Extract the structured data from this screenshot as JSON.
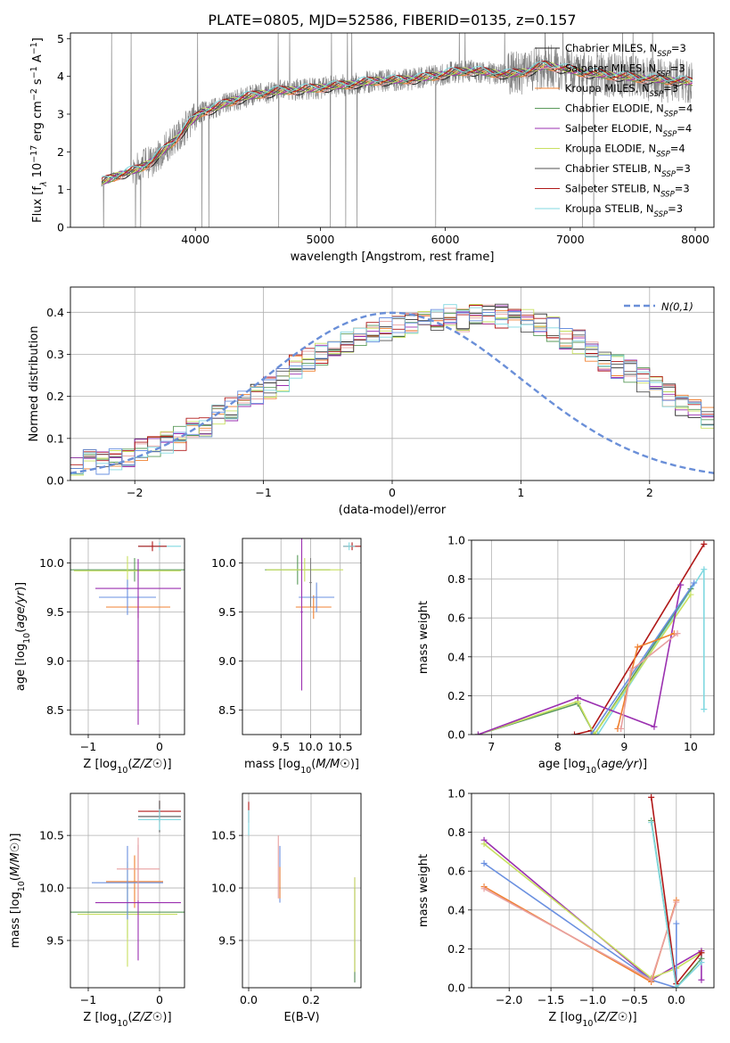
{
  "figure": {
    "title": "PLATE=0805, MJD=52586, FIBERID=0135, z=0.157"
  },
  "colors": {
    "data": "#808080",
    "models": [
      "#1f1f1f",
      "#e8a0a0",
      "#f08030",
      "#5a9a5a",
      "#9b30b0",
      "#c8e060",
      "#505050",
      "#b01818",
      "#80d8e0",
      "#6a90e0"
    ]
  },
  "chart_data": [
    {
      "id": "spectrum",
      "type": "line",
      "xlabel": "wavelength [Angstrom, rest frame]",
      "ylabel": "Flux [f_λ 10^-17 erg cm^-2 s^-1 A^-1]",
      "xlim": [
        3000,
        8150
      ],
      "ylim": [
        0,
        5.15
      ],
      "xticks": [
        4000,
        5000,
        6000,
        7000,
        8000
      ],
      "yticks": [
        0,
        1,
        2,
        3,
        4,
        5
      ],
      "grid": false,
      "legend_position": "top-right",
      "series": [
        {
          "name": "Chabrier MILES, N_SSP=3",
          "color": "#1f1f1f"
        },
        {
          "name": "Salpeter MILES, N_SSP=3",
          "color": "#e8a0a0"
        },
        {
          "name": "Kroupa MILES, N_SSP=3",
          "color": "#f08030"
        },
        {
          "name": "Chabrier ELODIE, N_SSP=4",
          "color": "#5a9a5a"
        },
        {
          "name": "Salpeter ELODIE, N_SSP=4",
          "color": "#9b30b0"
        },
        {
          "name": "Kroupa ELODIE, N_SSP=4",
          "color": "#c8e060"
        },
        {
          "name": "Chabrier STELIB, N_SSP=3",
          "color": "#505050"
        },
        {
          "name": "Salpeter STELIB, N_SSP=3",
          "color": "#b01818"
        },
        {
          "name": "Kroupa STELIB, N_SSP=3",
          "color": "#80d8e0"
        }
      ],
      "model_curve": {
        "x": [
          3250,
          3400,
          3550,
          3650,
          3750,
          3850,
          3950,
          4050,
          4150,
          4250,
          4400,
          4550,
          4700,
          4850,
          5000,
          5150,
          5300,
          5450,
          5600,
          5750,
          5900,
          6050,
          6200,
          6350,
          6500,
          6650,
          6800,
          6950,
          7100,
          7250,
          7400,
          7550,
          7700,
          7850,
          7980
        ],
        "y": [
          1.2,
          1.4,
          1.55,
          1.75,
          2.05,
          2.35,
          2.75,
          3.05,
          3.15,
          3.3,
          3.45,
          3.55,
          3.62,
          3.65,
          3.7,
          3.75,
          3.82,
          3.88,
          3.9,
          3.93,
          4.0,
          4.1,
          4.15,
          4.1,
          4.05,
          4.12,
          4.3,
          4.2,
          4.1,
          4.05,
          4.0,
          3.95,
          3.92,
          3.88,
          3.85
        ]
      }
    },
    {
      "id": "residuals",
      "type": "line",
      "xlabel": "(data-model)/error",
      "ylabel": "Normed distribution",
      "xlim": [
        -2.5,
        2.5
      ],
      "ylim": [
        0,
        0.46
      ],
      "xticks": [
        -2,
        -1,
        0,
        1,
        2
      ],
      "yticks": [
        0.0,
        0.1,
        0.2,
        0.3,
        0.4
      ],
      "grid": true,
      "legend_position": "top-right",
      "legend": "N(0,1)",
      "gaussian": {
        "mu": 0,
        "sigma": 1,
        "color": "#6a8fd8"
      },
      "bin_width": 0.1,
      "hist_shape": [
        0.04,
        0.05,
        0.04,
        0.05,
        0.06,
        0.07,
        0.08,
        0.09,
        0.1,
        0.12,
        0.13,
        0.15,
        0.17,
        0.19,
        0.2,
        0.22,
        0.24,
        0.27,
        0.29,
        0.3,
        0.32,
        0.33,
        0.34,
        0.35,
        0.36,
        0.37,
        0.37,
        0.38,
        0.38,
        0.39,
        0.38,
        0.39,
        0.39,
        0.39,
        0.38,
        0.38,
        0.37,
        0.36,
        0.34,
        0.33,
        0.31,
        0.29,
        0.27,
        0.26,
        0.24,
        0.22,
        0.2,
        0.18,
        0.17,
        0.15
      ]
    },
    {
      "id": "age-vs-Z",
      "type": "scatter",
      "xlabel": "Z [log10(Z/Z☉)]",
      "ylabel": "age [log10(age/yr)]",
      "xlim": [
        -1.25,
        0.35
      ],
      "ylim": [
        8.25,
        10.25
      ],
      "xticks": [
        -1,
        0
      ],
      "yticks": [
        8.5,
        9.0,
        9.5,
        10.0
      ],
      "grid": true,
      "points": [
        {
          "x": -0.35,
          "y": 9.93,
          "xerr": 1.05,
          "yerr": 0.12,
          "color": "#5a9a5a"
        },
        {
          "x": -0.45,
          "y": 9.92,
          "xerr": 0.75,
          "yerr": 0.15,
          "color": "#c8e060"
        },
        {
          "x": -0.3,
          "y": 9.55,
          "xerr": 0.45,
          "yerr": 0.12,
          "color": "#f08030"
        },
        {
          "x": -0.45,
          "y": 9.65,
          "xerr": 0.4,
          "yerr": 0.18,
          "color": "#6a90e0"
        },
        {
          "x": -0.3,
          "y": 9.74,
          "xerr": 0.6,
          "yerr": 0.3,
          "color": "#9b30b0"
        },
        {
          "x": -0.3,
          "y": 9.0,
          "xerr": 0.02,
          "yerr": 0.65,
          "color": "#9b30b0"
        },
        {
          "x": 0.0,
          "y": 10.17,
          "xerr": 0.3,
          "yerr": 0.04,
          "color": "#80d8e0"
        },
        {
          "x": -0.1,
          "y": 10.17,
          "xerr": 0.2,
          "yerr": 0.05,
          "color": "#b01818"
        }
      ]
    },
    {
      "id": "age-vs-mass",
      "type": "scatter",
      "xlabel": "mass [log10(M/M☉)]",
      "ylabel": "",
      "xlim": [
        8.85,
        10.85
      ],
      "ylim": [
        8.25,
        10.25
      ],
      "xticks": [
        9.5,
        10.0,
        10.5
      ],
      "yticks": [
        8.5,
        9.0,
        9.5,
        10.0
      ],
      "grid": true,
      "points": [
        {
          "x": 9.78,
          "y": 9.93,
          "xerr": 0.55,
          "yerr": 0.15,
          "color": "#5a9a5a"
        },
        {
          "x": 9.9,
          "y": 9.93,
          "xerr": 0.65,
          "yerr": 0.12,
          "color": "#c8e060"
        },
        {
          "x": 10.05,
          "y": 9.55,
          "xerr": 0.3,
          "yerr": 0.12,
          "color": "#f08030"
        },
        {
          "x": 10.1,
          "y": 9.65,
          "xerr": 0.3,
          "yerr": 0.15,
          "color": "#6a90e0"
        },
        {
          "x": 9.85,
          "y": 9.5,
          "xerr": 0.02,
          "yerr": 0.8,
          "color": "#9b30b0"
        },
        {
          "x": 10.0,
          "y": 9.8,
          "xerr": 0.02,
          "yerr": 0.25,
          "color": "#808080"
        },
        {
          "x": 10.7,
          "y": 10.17,
          "xerr": 0.15,
          "yerr": 0.04,
          "color": "#b01818"
        },
        {
          "x": 10.65,
          "y": 10.17,
          "xerr": 0.1,
          "yerr": 0.04,
          "color": "#80d8e0"
        }
      ]
    },
    {
      "id": "weight-vs-age",
      "type": "line",
      "xlabel": "age [log10(age/yr)]",
      "ylabel": "mass weight",
      "xlim": [
        6.7,
        10.35
      ],
      "ylim": [
        0,
        1.0
      ],
      "xticks": [
        7,
        8,
        9,
        10
      ],
      "yticks": [
        0.0,
        0.2,
        0.4,
        0.6,
        0.8,
        1.0
      ],
      "grid": true,
      "series": [
        {
          "color": "#b01818",
          "x": [
            8.25,
            8.5,
            10.2
          ],
          "y": [
            0.0,
            0.02,
            0.98
          ]
        },
        {
          "color": "#80d8e0",
          "x": [
            8.6,
            10.2,
            10.2
          ],
          "y": [
            0.0,
            0.85,
            0.13
          ]
        },
        {
          "color": "#5a9a5a",
          "x": [
            6.8,
            8.3,
            8.55,
            10.0
          ],
          "y": [
            0.0,
            0.16,
            0.0,
            0.75
          ]
        },
        {
          "color": "#c8e060",
          "x": [
            6.8,
            8.3,
            8.55,
            10.0
          ],
          "y": [
            0.0,
            0.17,
            0.0,
            0.72
          ]
        },
        {
          "color": "#9b30b0",
          "x": [
            6.8,
            8.3,
            9.45,
            9.85
          ],
          "y": [
            0.0,
            0.19,
            0.04,
            0.77
          ]
        },
        {
          "color": "#6a90e0",
          "x": [
            8.5,
            10.05
          ],
          "y": [
            0.0,
            0.78
          ]
        },
        {
          "color": "#f08030",
          "x": [
            8.9,
            9.2,
            9.75
          ],
          "y": [
            0.03,
            0.45,
            0.52
          ]
        },
        {
          "color": "#e8a0a0",
          "x": [
            8.95,
            9.1,
            9.8
          ],
          "y": [
            0.03,
            0.33,
            0.52
          ]
        }
      ]
    },
    {
      "id": "mass-vs-Z",
      "type": "scatter",
      "xlabel": "Z [log10(Z/Z☉)]",
      "ylabel": "mass [log10(M/M☉)]",
      "xlim": [
        -1.25,
        0.35
      ],
      "ylim": [
        9.05,
        10.9
      ],
      "xticks": [
        -1,
        0
      ],
      "yticks": [
        9.5,
        10.0,
        10.5
      ],
      "grid": true,
      "points": [
        {
          "x": -0.45,
          "y": 9.77,
          "xerr": 1.1,
          "yerr": 0.25,
          "color": "#5a9a5a"
        },
        {
          "x": -0.45,
          "y": 9.75,
          "xerr": 0.7,
          "yerr": 0.5,
          "color": "#c8e060"
        },
        {
          "x": -0.35,
          "y": 10.06,
          "xerr": 0.4,
          "yerr": 0.25,
          "color": "#f08030"
        },
        {
          "x": -0.45,
          "y": 10.05,
          "xerr": 0.5,
          "yerr": 0.35,
          "color": "#6a90e0"
        },
        {
          "x": -0.3,
          "y": 9.86,
          "xerr": 0.6,
          "yerr": 0.55,
          "color": "#9b30b0"
        },
        {
          "x": -0.3,
          "y": 10.18,
          "xerr": 0.3,
          "yerr": 0.3,
          "color": "#e8a0a0"
        },
        {
          "x": 0.0,
          "y": 10.73,
          "xerr": 0.3,
          "yerr": 0.1,
          "color": "#b01818"
        },
        {
          "x": 0.0,
          "y": 10.68,
          "xerr": 0.3,
          "yerr": 0.15,
          "color": "#505050"
        },
        {
          "x": 0.0,
          "y": 10.65,
          "xerr": 0.3,
          "yerr": 0.1,
          "color": "#80d8e0"
        }
      ]
    },
    {
      "id": "mass-vs-EBV",
      "type": "scatter",
      "xlabel": "E(B-V)",
      "ylabel": "",
      "xlim": [
        -0.02,
        0.36
      ],
      "ylim": [
        9.05,
        10.9
      ],
      "xticks": [
        0.0,
        0.2
      ],
      "yticks": [
        9.5,
        10.0,
        10.5
      ],
      "grid": true,
      "points": [
        {
          "x": 0.0,
          "y": 10.72,
          "xerr": 0,
          "yerr": 0.1,
          "color": "#b01818"
        },
        {
          "x": 0.0,
          "y": 10.62,
          "xerr": 0,
          "yerr": 0.12,
          "color": "#80d8e0"
        },
        {
          "x": 0.095,
          "y": 10.2,
          "xerr": 0,
          "yerr": 0.3,
          "color": "#e8a0a0"
        },
        {
          "x": 0.1,
          "y": 10.13,
          "xerr": 0,
          "yerr": 0.27,
          "color": "#6a90e0"
        },
        {
          "x": 0.1,
          "y": 10.05,
          "xerr": 0,
          "yerr": 0.15,
          "color": "#f08030"
        },
        {
          "x": 0.34,
          "y": 9.6,
          "xerr": 0,
          "yerr": 0.5,
          "color": "#9b30b0"
        },
        {
          "x": 0.34,
          "y": 9.55,
          "xerr": 0,
          "yerr": 0.45,
          "color": "#5a9a5a"
        },
        {
          "x": 0.34,
          "y": 9.65,
          "xerr": 0,
          "yerr": 0.45,
          "color": "#c8e060"
        }
      ]
    },
    {
      "id": "weight-vs-Z",
      "type": "line",
      "xlabel": "Z [log10(Z/Z☉)]",
      "ylabel": "mass weight",
      "xlim": [
        -2.45,
        0.45
      ],
      "ylim": [
        0,
        1.0
      ],
      "xticks": [
        -2.0,
        -1.5,
        -1.0,
        -0.5,
        0.0
      ],
      "yticks": [
        0.0,
        0.2,
        0.4,
        0.6,
        0.8,
        1.0
      ],
      "grid": true,
      "series": [
        {
          "color": "#9b30b0",
          "x": [
            -2.3,
            -0.3,
            0.3,
            0.3
          ],
          "y": [
            0.76,
            0.04,
            0.19,
            0.04
          ]
        },
        {
          "color": "#c8e060",
          "x": [
            -2.3,
            -0.3,
            0.0,
            0.3
          ],
          "y": [
            0.74,
            0.05,
            0.1,
            0.18
          ]
        },
        {
          "color": "#6a90e0",
          "x": [
            -2.3,
            -0.3,
            0.0,
            0.0
          ],
          "y": [
            0.64,
            0.04,
            0.0,
            0.33
          ]
        },
        {
          "color": "#f08030",
          "x": [
            -2.3,
            -0.3,
            0.0
          ],
          "y": [
            0.52,
            0.03,
            0.45
          ]
        },
        {
          "color": "#e8a0a0",
          "x": [
            -2.3,
            -0.3,
            0.0
          ],
          "y": [
            0.51,
            0.04,
            0.44
          ]
        },
        {
          "color": "#5a9a5a",
          "x": [
            -0.3,
            0.0,
            0.3
          ],
          "y": [
            0.86,
            0.0,
            0.15
          ]
        },
        {
          "color": "#b01818",
          "x": [
            -0.3,
            0.0,
            0.3
          ],
          "y": [
            0.98,
            0.02,
            0.18
          ]
        },
        {
          "color": "#80d8e0",
          "x": [
            -0.3,
            0.0,
            0.3
          ],
          "y": [
            0.85,
            0.0,
            0.13
          ]
        }
      ]
    }
  ]
}
